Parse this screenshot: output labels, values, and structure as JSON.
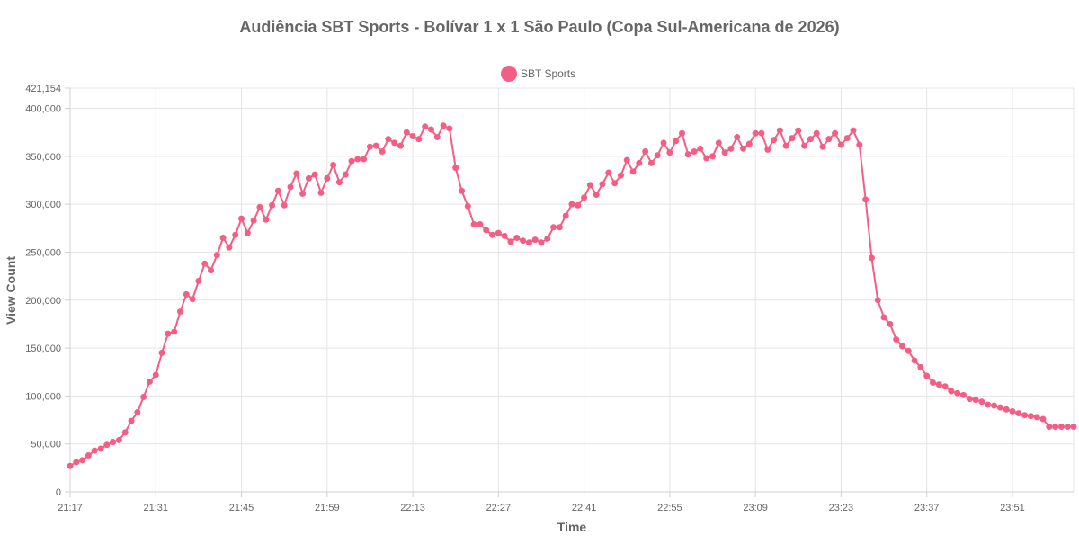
{
  "chart_data": {
    "type": "line",
    "title": "Audiência SBT Sports - Bolívar 1 x 1 São Paulo (Copa Sul-Americana de 2026)",
    "xlabel": "Time",
    "ylabel": "View Count",
    "ylim": [
      0,
      421154
    ],
    "y_ticks": [
      "0",
      "50,000",
      "100,000",
      "150,000",
      "200,000",
      "250,000",
      "300,000",
      "350,000",
      "400,000",
      "421,154"
    ],
    "y_tick_values": [
      0,
      50000,
      100000,
      150000,
      200000,
      250000,
      300000,
      350000,
      400000,
      421154
    ],
    "x_tick_labels": [
      "21:17",
      "21:31",
      "21:45",
      "21:59",
      "22:13",
      "22:27",
      "22:41",
      "22:55",
      "23:09",
      "23:23",
      "23:37",
      "23:51"
    ],
    "grid": true,
    "legend_position": "top",
    "series": [
      {
        "name": "SBT Sports",
        "color": "#f45e85",
        "values": [
          27000,
          31000,
          33000,
          38000,
          43000,
          45000,
          49000,
          52000,
          54000,
          62000,
          74000,
          83000,
          99000,
          115000,
          122000,
          145000,
          165000,
          167000,
          188000,
          206000,
          201000,
          220000,
          238000,
          231000,
          247000,
          265000,
          255000,
          268000,
          285000,
          270000,
          283000,
          297000,
          284000,
          299000,
          314000,
          299000,
          318000,
          332000,
          311000,
          327000,
          331000,
          312000,
          327000,
          341000,
          323000,
          331000,
          345000,
          347000,
          347000,
          360000,
          361000,
          355000,
          368000,
          364000,
          361000,
          375000,
          371000,
          368000,
          381000,
          378000,
          370000,
          382000,
          379000,
          338000,
          314000,
          298000,
          279000,
          279000,
          273000,
          268000,
          270000,
          267000,
          261000,
          265000,
          262000,
          260000,
          263000,
          260000,
          264000,
          276000,
          276000,
          288000,
          300000,
          299000,
          307000,
          320000,
          310000,
          321000,
          333000,
          322000,
          330000,
          346000,
          334000,
          343000,
          355000,
          343000,
          351000,
          364000,
          354000,
          366000,
          374000,
          352000,
          355000,
          358000,
          348000,
          350000,
          364000,
          354000,
          358000,
          370000,
          358000,
          363000,
          374000,
          374000,
          357000,
          367000,
          377000,
          361000,
          369000,
          377000,
          361000,
          368000,
          374000,
          360000,
          368000,
          374000,
          362000,
          369000,
          377000,
          362000,
          305000,
          244000,
          200000,
          182000,
          175000,
          159000,
          152000,
          147000,
          137000,
          130000,
          121000,
          114000,
          112000,
          110000,
          105000,
          103000,
          101000,
          97000,
          96000,
          94000,
          91000,
          90000,
          88000,
          86000,
          84000,
          82000,
          80000,
          79000,
          78000,
          76000,
          68000,
          68000,
          68000,
          68000,
          68000
        ]
      }
    ]
  }
}
